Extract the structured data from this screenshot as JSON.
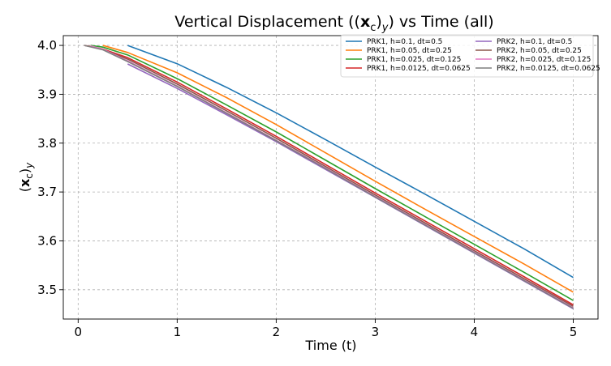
{
  "chart_data": {
    "type": "line",
    "title": "Vertical Displacement ((xc)y) vs Time (all)",
    "title_parts": {
      "prefix": "Vertical Displacement ((",
      "var": "x",
      "sub": "c",
      "mid": ")",
      "sub2": "y",
      "suffix": ") vs Time (all)"
    },
    "xlabel": "Time (t)",
    "ylabel": "(xc)y",
    "ylabel_parts": {
      "open": "(",
      "var": "x",
      "sub": "c",
      "close": ")",
      "sub2": "y"
    },
    "xlim": [
      -0.15,
      5.25
    ],
    "ylim": [
      3.44,
      4.02
    ],
    "xticks": [
      "0",
      "1",
      "2",
      "3",
      "4",
      "5"
    ],
    "yticks": [
      "3.5",
      "3.6",
      "3.7",
      "3.8",
      "3.9",
      "4.0"
    ],
    "grid": true,
    "legend_position": "top-right",
    "series": [
      {
        "name": "PRK1, h=0.1, dt=0.5",
        "color": "#1f77b4",
        "x": [
          0.5,
          1.0,
          1.5,
          2.0,
          2.5,
          3.0,
          3.5,
          4.0,
          4.5,
          5.0
        ],
        "y": [
          4.0,
          3.9625,
          3.914,
          3.862,
          3.807,
          3.751,
          3.696,
          3.64,
          3.584,
          3.525
        ]
      },
      {
        "name": "PRK1, h=0.05, dt=0.25",
        "color": "#ff7f0e",
        "x": [
          0.25,
          0.5,
          1.0,
          1.5,
          2.0,
          2.5,
          3.0,
          3.5,
          4.0,
          4.5,
          5.0
        ],
        "y": [
          4.0,
          3.9855,
          3.944,
          3.893,
          3.838,
          3.78,
          3.722,
          3.665,
          3.609,
          3.553,
          3.495
        ]
      },
      {
        "name": "PRK1, h=0.025, dt=0.125",
        "color": "#2ca02c",
        "x": [
          0.125,
          0.25,
          0.5,
          1.0,
          1.5,
          2.0,
          2.5,
          3.0,
          3.5,
          4.0,
          4.5,
          5.0
        ],
        "y": [
          4.0,
          3.9965,
          3.9805,
          3.932,
          3.878,
          3.823,
          3.765,
          3.707,
          3.65,
          3.593,
          3.536,
          3.478
        ]
      },
      {
        "name": "PRK1, h=0.0125, dt=0.0625",
        "color": "#d62728",
        "x": [
          0.0625,
          0.25,
          0.5,
          1.0,
          1.5,
          2.0,
          2.5,
          3.0,
          3.5,
          4.0,
          4.5,
          5.0
        ],
        "y": [
          4.0,
          3.9925,
          3.975,
          3.925,
          3.87,
          3.814,
          3.756,
          3.698,
          3.641,
          3.584,
          3.527,
          3.469
        ]
      },
      {
        "name": "PRK2, h=0.1, dt=0.5",
        "color": "#9467bd",
        "x": [
          0.5,
          1.0,
          1.5,
          2.0,
          2.5,
          3.0,
          3.5,
          4.0,
          4.5,
          5.0
        ],
        "y": [
          3.962,
          3.912,
          3.858,
          3.803,
          3.746,
          3.689,
          3.632,
          3.575,
          3.518,
          3.461
        ]
      },
      {
        "name": "PRK2, h=0.05, dt=0.25",
        "color": "#8c564b",
        "x": [
          0.25,
          0.5,
          1.0,
          1.5,
          2.0,
          2.5,
          3.0,
          3.5,
          4.0,
          4.5,
          5.0
        ],
        "y": [
          3.9915,
          3.972,
          3.921,
          3.866,
          3.81,
          3.752,
          3.694,
          3.637,
          3.58,
          3.523,
          3.466
        ]
      },
      {
        "name": "PRK2, h=0.025, dt=0.125",
        "color": "#e377c2",
        "x": [
          0.125,
          0.25,
          0.5,
          1.0,
          1.5,
          2.0,
          2.5,
          3.0,
          3.5,
          4.0,
          4.5,
          5.0
        ],
        "y": [
          3.999,
          3.992,
          3.9685,
          3.917,
          3.862,
          3.806,
          3.749,
          3.691,
          3.634,
          3.577,
          3.52,
          3.463
        ]
      },
      {
        "name": "PRK2, h=0.0125, dt=0.0625",
        "color": "#7f7f7f",
        "x": [
          0.0625,
          0.25,
          0.5,
          1.0,
          1.5,
          2.0,
          2.5,
          3.0,
          3.5,
          4.0,
          4.5,
          5.0
        ],
        "y": [
          4.0,
          3.991,
          3.967,
          3.916,
          3.861,
          3.805,
          3.748,
          3.69,
          3.633,
          3.576,
          3.519,
          3.462
        ]
      }
    ]
  }
}
